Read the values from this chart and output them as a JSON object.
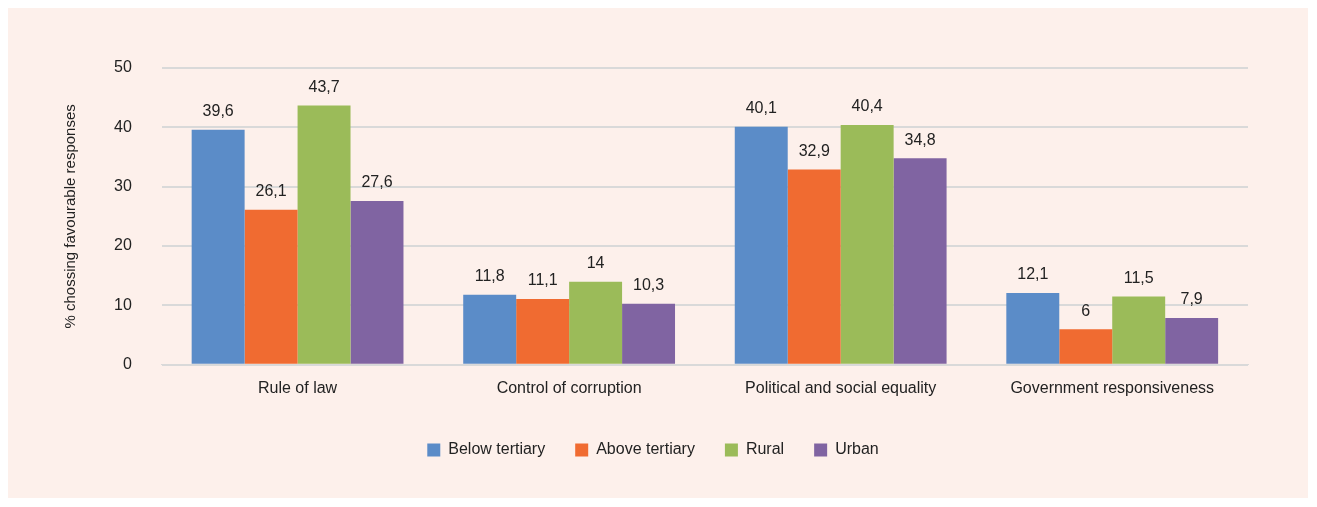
{
  "chart_data": {
    "type": "bar",
    "ylabel": "% chossing favourable responses",
    "categories": [
      "Rule of law",
      "Control of corruption",
      "Political and social equality",
      "Government responsiveness"
    ],
    "series": [
      {
        "name": "Below tertiary",
        "color": "#5b8cc8",
        "values": [
          39.6,
          11.8,
          40.1,
          12.1
        ],
        "value_labels": [
          "39,6",
          "11,8",
          "40,1",
          "12,1"
        ]
      },
      {
        "name": "Above tertiary",
        "color": "#f06b31",
        "values": [
          26.1,
          11.1,
          32.9,
          6
        ],
        "value_labels": [
          "26,1",
          "11,1",
          "32,9",
          "6"
        ]
      },
      {
        "name": "Rural",
        "color": "#9bbb59",
        "values": [
          43.7,
          14,
          40.4,
          11.5
        ],
        "value_labels": [
          "43,7",
          "14",
          "40,4",
          "11,5"
        ]
      },
      {
        "name": "Urban",
        "color": "#8064a2",
        "values": [
          27.6,
          10.3,
          34.8,
          7.9
        ],
        "value_labels": [
          "27,6",
          "10,3",
          "34,8",
          "7,9"
        ]
      }
    ],
    "ylim": [
      0,
      50
    ],
    "yticks": [
      0,
      10,
      20,
      30,
      40,
      50
    ],
    "grid": "y",
    "legend": "bottom"
  }
}
